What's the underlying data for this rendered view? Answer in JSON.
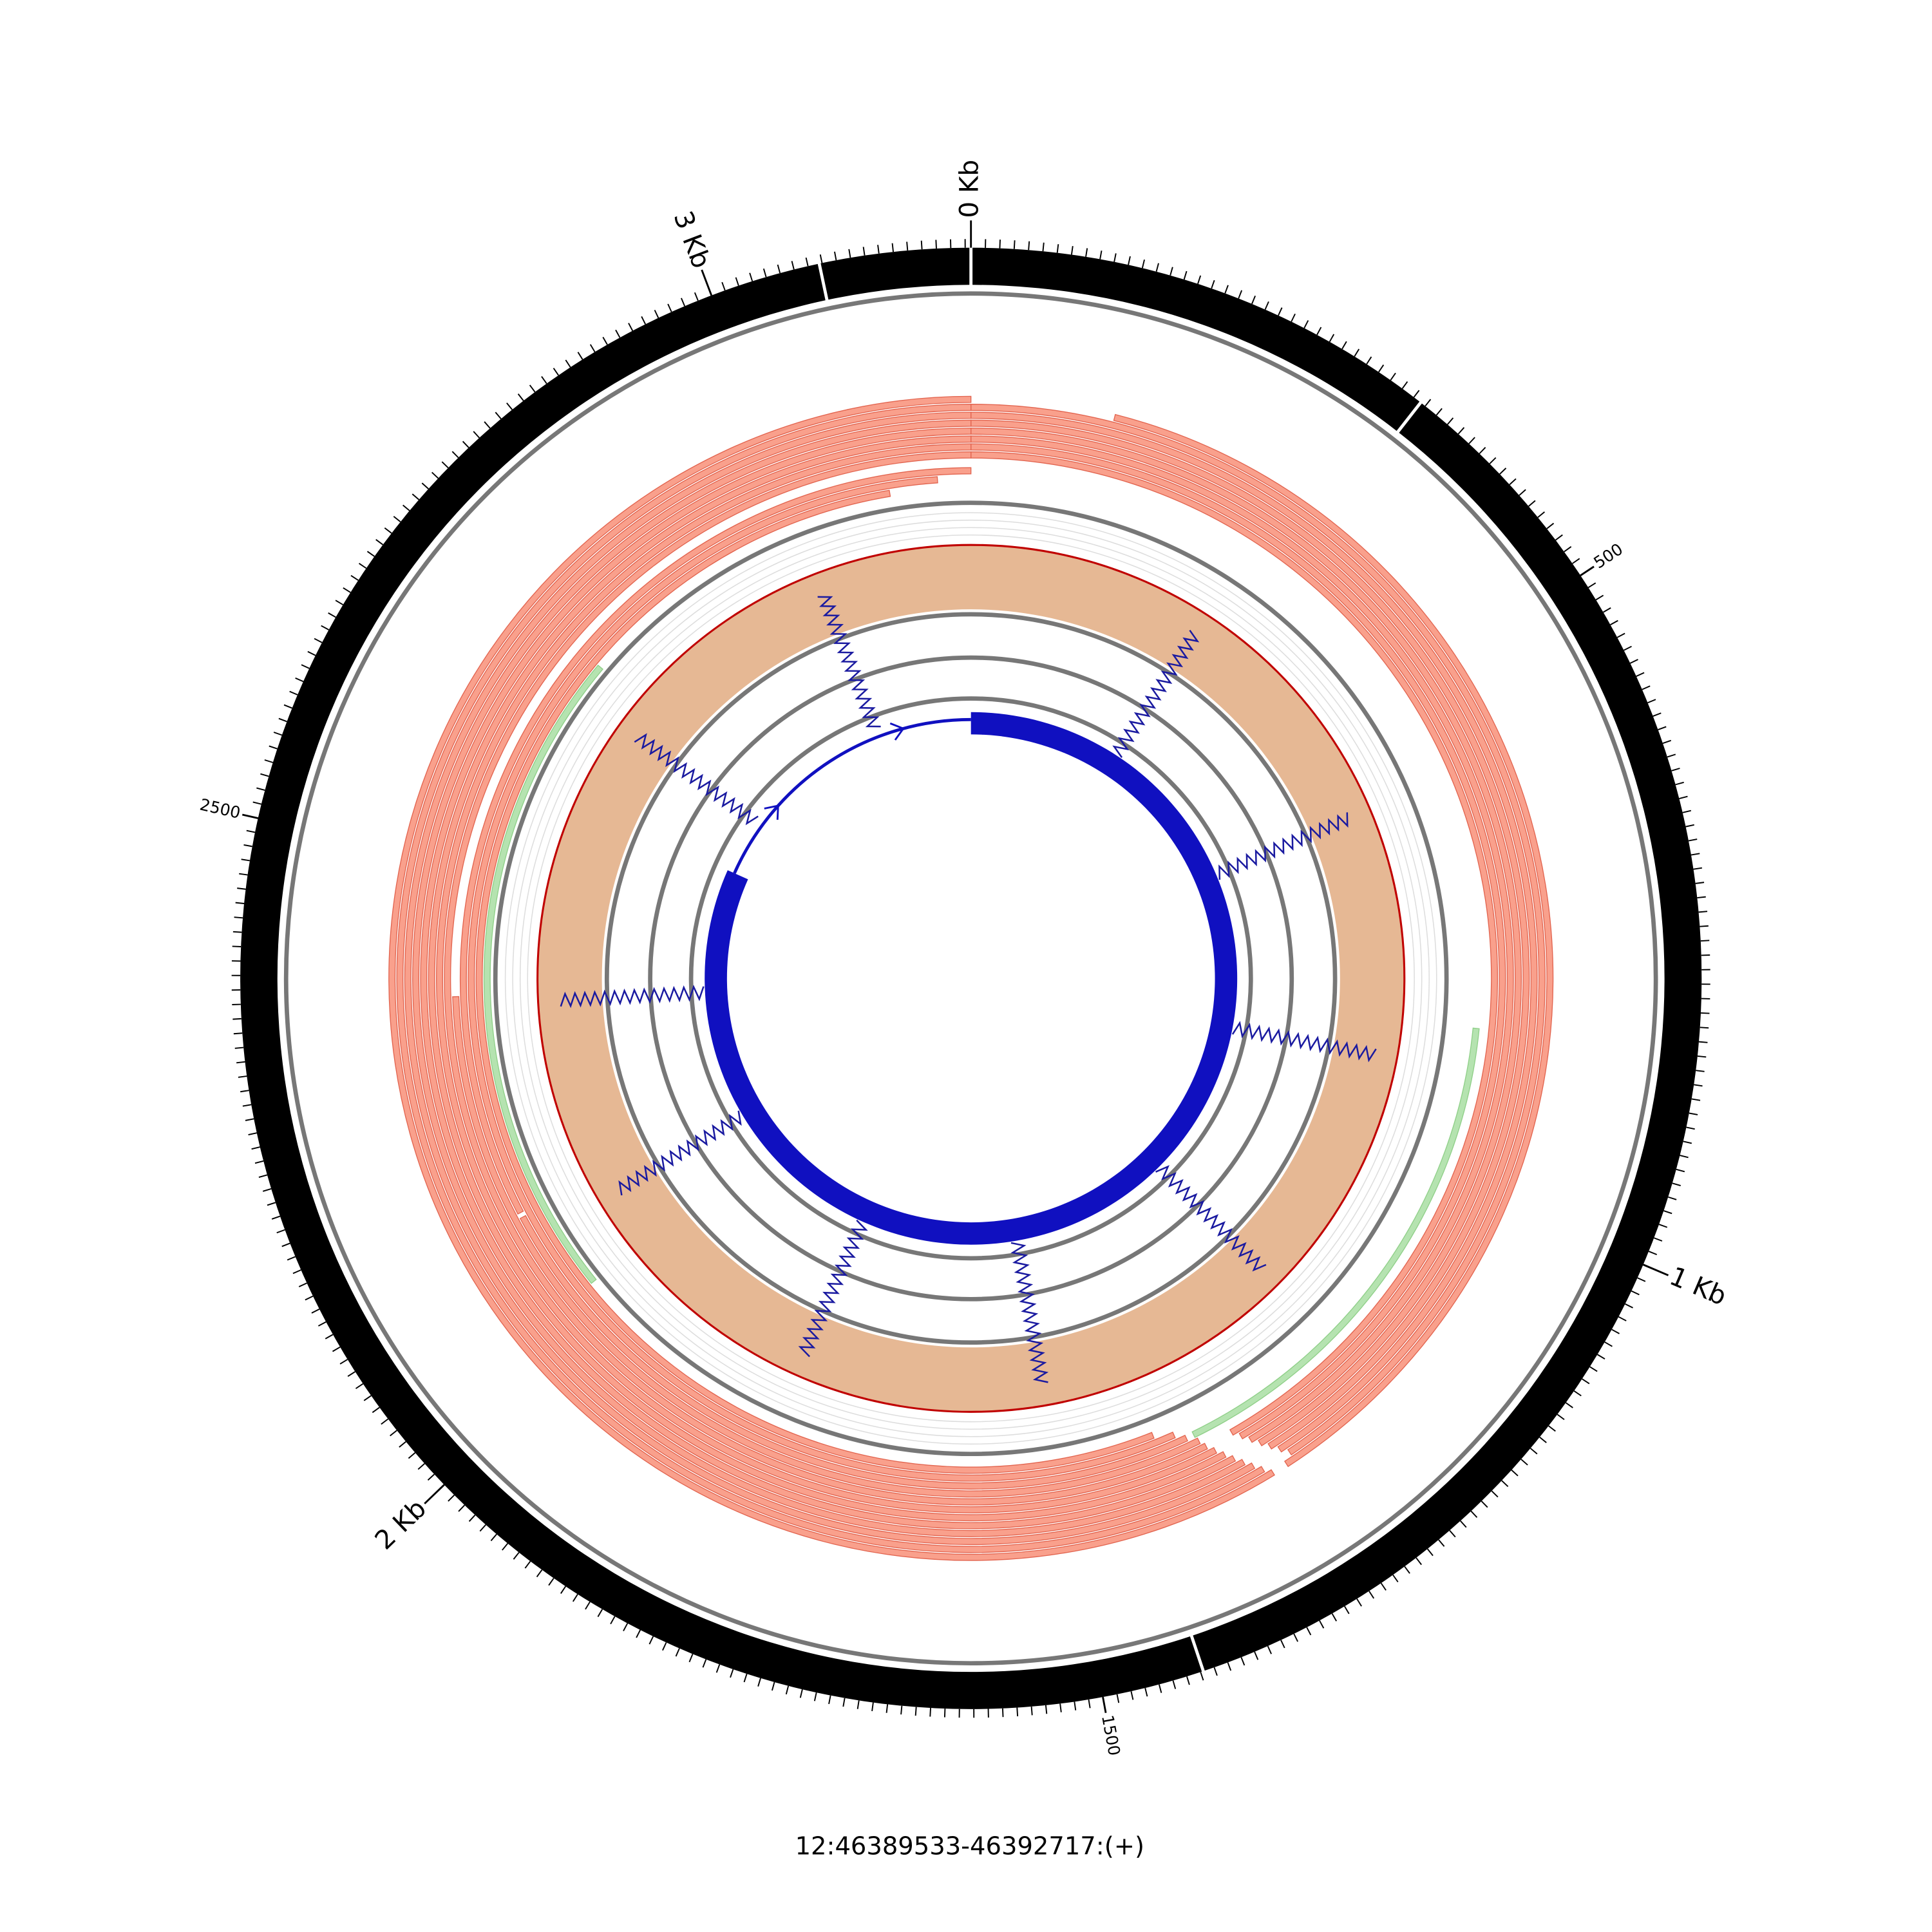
{
  "chart_data": {
    "type": "circos",
    "title": "12:46389533-46392717:(+)",
    "xlim": [
      0,
      3184
    ],
    "xticks": [
      {
        "value": 0,
        "label": "0 Kb"
      },
      {
        "value": 1000,
        "label": "1 Kb"
      },
      {
        "value": 2000,
        "label": "2 Kb"
      },
      {
        "value": 3000,
        "label": "3 Kb"
      }
    ],
    "xticks_minor": [
      500,
      1500,
      2500
    ],
    "tick_step": 10,
    "ideogram_breaks": [
      0,
      336,
      1428,
      3078
    ],
    "reads": [
      {
        "start": 127,
        "end": 1300
      },
      {
        "start": 0,
        "end": 1292
      },
      {
        "start": 0,
        "end": 1298
      },
      {
        "start": 0,
        "end": 1304
      },
      {
        "start": 0,
        "end": 1310
      },
      {
        "start": 0,
        "end": 1316
      },
      {
        "start": 0,
        "end": 1322
      },
      {
        "start": 0,
        "end": 1328
      },
      {
        "start": 1314,
        "end": 3184
      },
      {
        "start": 1320,
        "end": 3184
      },
      {
        "start": 1326,
        "end": 3184
      },
      {
        "start": 1332,
        "end": 3184
      },
      {
        "start": 1338,
        "end": 3184
      },
      {
        "start": 1344,
        "end": 3184
      },
      {
        "start": 1350,
        "end": 3184
      },
      {
        "start": 1356,
        "end": 3184
      },
      {
        "start": 1360,
        "end": 2370
      },
      {
        "start": 1370,
        "end": 2140
      },
      {
        "start": 2145,
        "end": 3184
      },
      {
        "start": 1380,
        "end": 3150
      },
      {
        "start": 1400,
        "end": 3100
      }
    ],
    "read_color": "#f9a08c",
    "green_regions": [
      {
        "start": 846,
        "end": 1362
      },
      {
        "start": 2045,
        "end": 2742
      }
    ],
    "green_color": "#b5e3b0",
    "coverage": {
      "start": 0,
      "end": 3184,
      "color": "#e6b894",
      "outline": "#c00000"
    },
    "gene": {
      "exons": [
        {
          "start": 0,
          "end": 2600
        }
      ],
      "color": "#1010c0"
    },
    "junctions": [
      292,
      593,
      891,
      1194,
      1504,
      1804,
      2114,
      2361,
      2706,
      2998
    ],
    "junction_color": "#1a1aa0"
  }
}
